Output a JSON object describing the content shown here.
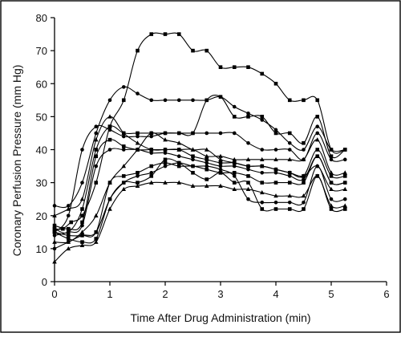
{
  "chart_data": {
    "type": "line",
    "title": "",
    "xlabel": "Time After Drug Administration (min)",
    "ylabel": "Coronary Perfusion Pressure (mm Hg)",
    "xlim": [
      0,
      6
    ],
    "ylim": [
      0,
      80
    ],
    "xticks": [
      "0",
      "1",
      "2",
      "3",
      "4",
      "5",
      "6"
    ],
    "yticks": [
      "0",
      "10",
      "20",
      "30",
      "40",
      "50",
      "60",
      "70",
      "80"
    ],
    "grid": false,
    "legend": false,
    "series": [
      {
        "marker": "square",
        "x": [
          0,
          0.15,
          0.3,
          0.5,
          0.75,
          1.0,
          1.25,
          1.5,
          1.75,
          2.0,
          2.25,
          2.5,
          2.75,
          3.0,
          3.25,
          3.5,
          3.75,
          4.0,
          4.25,
          4.5,
          4.75,
          5.0,
          5.25
        ],
        "values": [
          16,
          16,
          18,
          20,
          30,
          47,
          55,
          70,
          75,
          75,
          75,
          70,
          70,
          65,
          65,
          65,
          63,
          60,
          55,
          55,
          55,
          40,
          40
        ]
      },
      {
        "marker": "circle",
        "x": [
          0,
          0.25,
          0.5,
          0.75,
          1.0,
          1.25,
          1.5,
          1.75,
          2.0,
          2.25,
          2.5,
          2.75,
          3.0,
          3.25,
          3.5,
          3.75,
          4.0,
          4.25,
          4.5,
          4.75,
          5.0,
          5.25
        ],
        "values": [
          23,
          23,
          30,
          45,
          55,
          59,
          57,
          55,
          55,
          55,
          55,
          55,
          56,
          53,
          51,
          49,
          46,
          42,
          40,
          47,
          40,
          40
        ]
      },
      {
        "marker": "square",
        "x": [
          0,
          0.25,
          0.5,
          0.75,
          1.0,
          1.25,
          1.5,
          1.75,
          2.0,
          2.25,
          2.5,
          2.75,
          3.0,
          3.25,
          3.5,
          3.75,
          4.0,
          4.25,
          4.5,
          4.75,
          5.0,
          5.25
        ],
        "values": [
          16,
          15,
          22,
          40,
          47,
          45,
          45,
          45,
          45,
          45,
          45,
          55,
          56,
          50,
          50,
          50,
          45,
          45,
          42,
          50,
          38,
          40
        ]
      },
      {
        "marker": "circle",
        "x": [
          0,
          0.25,
          0.5,
          0.75,
          1.0,
          1.25,
          1.5,
          1.75,
          2.0,
          2.25,
          2.5,
          2.75,
          3.0,
          3.25,
          3.5,
          3.75,
          4.0,
          4.25,
          4.5,
          4.75,
          5.0,
          5.25
        ],
        "values": [
          15,
          20,
          40,
          47,
          46,
          44,
          44,
          44,
          45,
          45,
          45,
          45,
          45,
          45,
          42,
          40,
          40,
          40,
          37,
          45,
          37,
          37
        ]
      },
      {
        "marker": "triangle",
        "x": [
          0,
          0.25,
          0.5,
          0.75,
          1.0,
          1.25,
          1.5,
          1.75,
          2.0,
          2.25,
          2.5,
          2.75,
          3.0,
          3.25,
          3.5,
          3.75,
          4.0,
          4.25,
          4.5,
          4.75,
          5.0,
          5.25
        ],
        "values": [
          20,
          22,
          25,
          43,
          50,
          45,
          42,
          40,
          40,
          40,
          40,
          38,
          38,
          37,
          37,
          37,
          37,
          37,
          37,
          43,
          33,
          33
        ]
      },
      {
        "marker": "square",
        "x": [
          0,
          0.25,
          0.5,
          0.75,
          1.0,
          1.25,
          1.5,
          1.75,
          2.0,
          2.25,
          2.5,
          2.75,
          3.0,
          3.25,
          3.5,
          3.75,
          4.0,
          4.25,
          4.5,
          4.75,
          5.0,
          5.25
        ],
        "values": [
          17,
          16,
          18,
          38,
          43,
          41,
          40,
          40,
          40,
          40,
          38,
          37,
          36,
          36,
          35,
          35,
          34,
          33,
          32,
          40,
          32,
          32
        ]
      },
      {
        "marker": "circle",
        "x": [
          0,
          0.25,
          0.5,
          0.75,
          1.0,
          1.25,
          1.5,
          1.75,
          2.0,
          2.25,
          2.5,
          2.75,
          3.0,
          3.25,
          3.5,
          3.75,
          4.0,
          4.25,
          4.5,
          4.75,
          5.0,
          5.25
        ],
        "values": [
          14,
          15,
          17,
          35,
          40,
          40,
          40,
          39,
          39,
          38,
          37,
          36,
          35,
          35,
          34,
          33,
          33,
          32,
          31,
          38,
          30,
          30
        ]
      },
      {
        "marker": "triangle",
        "x": [
          0,
          0.25,
          0.5,
          0.75,
          1.0,
          1.25,
          1.5,
          1.75,
          2.0,
          2.25,
          2.5,
          2.75,
          3.0,
          3.25,
          3.5,
          3.75,
          4.0,
          4.25,
          4.5,
          4.75,
          5.0,
          5.25
        ],
        "values": [
          12,
          12,
          15,
          20,
          30,
          35,
          40,
          45,
          43,
          42,
          40,
          40,
          37,
          36,
          35,
          35,
          34,
          33,
          32,
          35,
          28,
          28
        ]
      },
      {
        "marker": "square",
        "x": [
          0,
          0.25,
          0.5,
          0.75,
          1.0,
          1.25,
          1.5,
          1.75,
          2.0,
          2.25,
          2.5,
          2.75,
          3.0,
          3.25,
          3.5,
          3.75,
          4.0,
          4.25,
          4.5,
          4.75,
          5.0,
          5.25
        ],
        "values": [
          15,
          14,
          14,
          15,
          30,
          32,
          33,
          35,
          36,
          35,
          35,
          34,
          33,
          33,
          32,
          30,
          30,
          30,
          30,
          38,
          30,
          30
        ]
      },
      {
        "marker": "circle",
        "x": [
          0,
          0.25,
          0.5,
          0.75,
          1.0,
          1.25,
          1.5,
          1.75,
          2.0,
          2.25,
          2.5,
          2.75,
          3.0,
          3.25,
          3.5,
          3.75,
          4.0,
          4.25,
          4.5,
          4.75,
          5.0,
          5.25
        ],
        "values": [
          10,
          12,
          14,
          15,
          25,
          30,
          32,
          33,
          35,
          36,
          35,
          35,
          34,
          32,
          25,
          24,
          24,
          24,
          24,
          35,
          25,
          25
        ]
      },
      {
        "marker": "square",
        "x": [
          0,
          0.25,
          0.5,
          0.75,
          1.0,
          1.25,
          1.5,
          1.75,
          2.0,
          2.25,
          2.5,
          2.75,
          3.0,
          3.25,
          3.5,
          3.75,
          4.0,
          4.25,
          4.5,
          4.75,
          5.0,
          5.25
        ],
        "values": [
          15,
          13,
          12,
          13,
          25,
          30,
          30,
          32,
          37,
          36,
          33,
          31,
          33,
          30,
          30,
          22,
          22,
          22,
          22,
          32,
          22,
          22
        ]
      },
      {
        "marker": "triangle",
        "x": [
          0,
          0.25,
          0.5,
          0.75,
          1.0,
          1.25,
          1.5,
          1.75,
          2.0,
          2.25,
          2.5,
          2.75,
          3.0,
          3.25,
          3.5,
          3.75,
          4.0,
          4.25,
          4.5,
          4.75,
          5.0,
          5.25
        ],
        "values": [
          6,
          10,
          11,
          12,
          22,
          28,
          29,
          30,
          30,
          30,
          29,
          29,
          29,
          28,
          28,
          27,
          26,
          26,
          26,
          32,
          23,
          23
        ]
      }
    ]
  }
}
